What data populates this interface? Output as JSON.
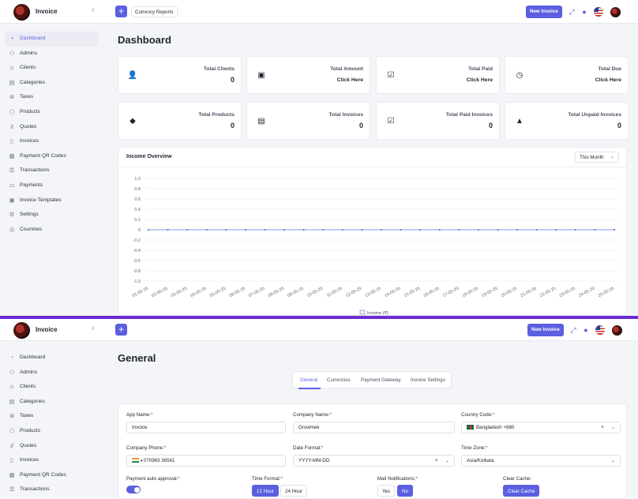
{
  "app": {
    "brand": "Invoice",
    "new_invoice_label": "New Invoice",
    "currency_reports_label": "Currency Reports"
  },
  "sidebar": {
    "items": [
      {
        "label": "Dashboard",
        "icon": "dashboard-icon"
      },
      {
        "label": "Admins",
        "icon": "user-icon"
      },
      {
        "label": "Clients",
        "icon": "users-icon"
      },
      {
        "label": "Categories",
        "icon": "list-icon"
      },
      {
        "label": "Taxes",
        "icon": "tax-icon"
      },
      {
        "label": "Products",
        "icon": "box-icon"
      },
      {
        "label": "Quotes",
        "icon": "paperclip-icon"
      },
      {
        "label": "Invoices",
        "icon": "file-icon"
      },
      {
        "label": "Payment QR Codes",
        "icon": "qr-icon"
      },
      {
        "label": "Transactions",
        "icon": "transactions-icon"
      },
      {
        "label": "Payments",
        "icon": "card-icon"
      },
      {
        "label": "Invoice Templates",
        "icon": "template-icon"
      },
      {
        "label": "Settings",
        "icon": "gear-icon"
      },
      {
        "label": "Countries",
        "icon": "globe-icon"
      }
    ]
  },
  "dashboard": {
    "title": "Dashboard",
    "cards": [
      {
        "label": "Total Clients",
        "value": "0",
        "icon": "person-icon"
      },
      {
        "label": "Total Amount",
        "value": "Click Here",
        "icon": "money-icon"
      },
      {
        "label": "Total Paid",
        "value": "Click Here",
        "icon": "check-file-icon"
      },
      {
        "label": "Total Due",
        "value": "Click Here",
        "icon": "clock-icon"
      },
      {
        "label": "Total Products",
        "value": "0",
        "icon": "cube-icon"
      },
      {
        "label": "Total Invoices",
        "value": "0",
        "icon": "invoices-icon"
      },
      {
        "label": "Total Paid Invoices",
        "value": "0",
        "icon": "paid-invoices-icon"
      },
      {
        "label": "Total Unpaid Invoices",
        "value": "0",
        "icon": "warning-icon"
      }
    ],
    "income": {
      "title": "Income Overview",
      "period": "This Month"
    }
  },
  "chart_data": {
    "type": "line",
    "title": "Income Overview",
    "x": [
      "01-05-25",
      "02-05-25",
      "03-05-25",
      "04-05-25",
      "05-05-25",
      "06-05-25",
      "07-05-25",
      "08-05-25",
      "09-05-25",
      "10-05-25",
      "11-05-25",
      "12-05-25",
      "13-05-25",
      "14-05-25",
      "15-05-25",
      "16-05-25",
      "17-05-25",
      "18-05-25",
      "19-05-25",
      "20-05-25",
      "21-05-25",
      "22-05-25",
      "23-05-25",
      "24-05-25",
      "25-05-25"
    ],
    "series": [
      {
        "name": "Income (₹)",
        "values": [
          0,
          0,
          0,
          0,
          0,
          0,
          0,
          0,
          0,
          0,
          0,
          0,
          0,
          0,
          0,
          0,
          0,
          0,
          0,
          0,
          0,
          0,
          0,
          0,
          0
        ],
        "color": "#5b7fd6"
      }
    ],
    "yticks": [
      "1.0",
      "0.8",
      "0.6",
      "0.4",
      "0.2",
      "0",
      "-0.2",
      "-0.4",
      "-0.6",
      "-0.8",
      "-1.0"
    ],
    "ylim": [
      -1,
      1
    ],
    "grid": true,
    "legend": "bottom"
  },
  "general": {
    "title": "General",
    "tabs": [
      "General",
      "Currencies",
      "Payment Gateway",
      "Invoice Settings"
    ],
    "fields": {
      "app_name": {
        "label": "App Name:",
        "value": "Invoice"
      },
      "company_name": {
        "label": "Company Name:",
        "value": "Growmek"
      },
      "country_code": {
        "label": "Country Code:",
        "value": "Bangladesh +880"
      },
      "company_phone": {
        "label": "Company Phone:",
        "value": "070963 36561"
      },
      "date_format": {
        "label": "Date Format:",
        "value": "YYYY-MM-DD"
      },
      "time_zone": {
        "label": "Time Zone:",
        "value": "Asia/Kolkata"
      },
      "payment_auto_approval": {
        "label": "Payment auto approval:"
      },
      "time_format": {
        "label": "Time Format:",
        "options": [
          "12 Hour",
          "24 Hour"
        ]
      },
      "mail_notifications": {
        "label": "Mail Notifications:",
        "options": [
          "Yes",
          "No"
        ]
      },
      "clear_cache": {
        "label": "Clear Cache:",
        "button": "Clear Cache"
      }
    }
  }
}
